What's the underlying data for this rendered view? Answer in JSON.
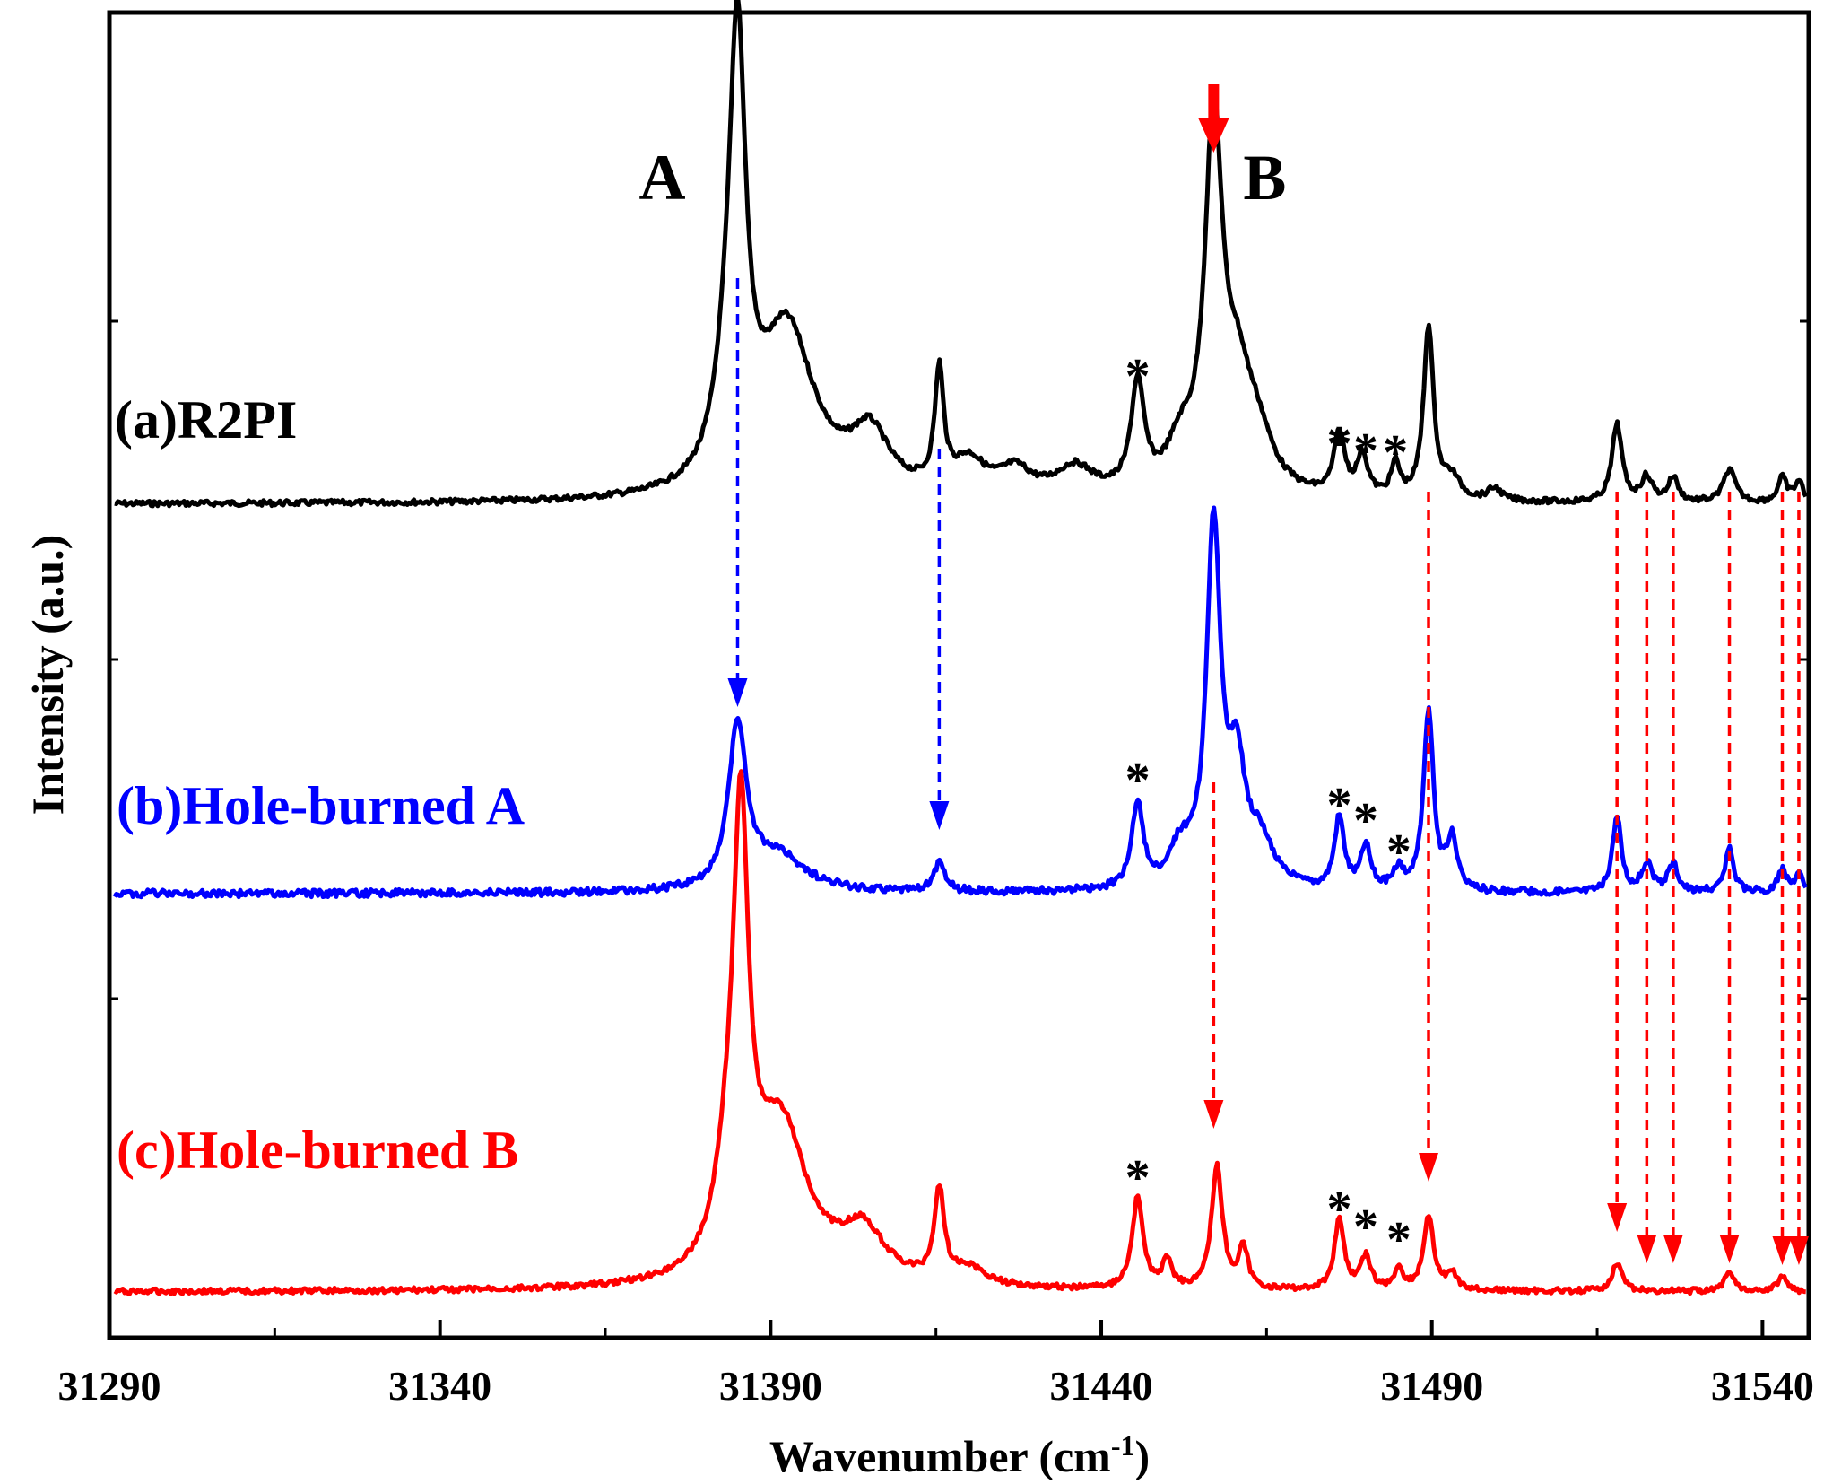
{
  "chart_data": {
    "type": "line",
    "xlabel": "Wavenumber (cm",
    "xlabel_superscript": "-1",
    "xlabel_close": ")",
    "ylabel": "Intensity (a.u.)",
    "xlim": [
      31290,
      31547
    ],
    "xticks": [
      31290,
      31340,
      31390,
      31440,
      31490,
      31540
    ],
    "grid": false,
    "colors": {
      "a": "#000000",
      "b": "#0000ff",
      "c": "#ff0000"
    },
    "series": [
      {
        "name": "(a)R2PI",
        "color": "#000000",
        "baseline": 0.0,
        "peaks": [
          {
            "x": 31385.0,
            "h": 1.0,
            "w": 1.5
          },
          {
            "x": 31383.3,
            "h": 0.16,
            "w": 2.2
          },
          {
            "x": 31392.5,
            "h": 0.4,
            "w": 5.0
          },
          {
            "x": 31405.0,
            "h": 0.14,
            "w": 3.5
          },
          {
            "x": 31415.5,
            "h": 0.28,
            "w": 0.8
          },
          {
            "x": 31420.0,
            "h": 0.08,
            "w": 3.0
          },
          {
            "x": 31427.0,
            "h": 0.06,
            "w": 3.0
          },
          {
            "x": 31436.0,
            "h": 0.07,
            "w": 3.5
          },
          {
            "x": 31445.5,
            "h": 0.26,
            "w": 1.2
          },
          {
            "x": 31452.0,
            "h": 0.1,
            "w": 2.5
          },
          {
            "x": 31457.0,
            "h": 0.88,
            "w": 1.6
          },
          {
            "x": 31460.5,
            "h": 0.22,
            "w": 2.5
          },
          {
            "x": 31463.5,
            "h": 0.12,
            "w": 3.0
          },
          {
            "x": 31476.0,
            "h": 0.15,
            "w": 1.0
          },
          {
            "x": 31479.5,
            "h": 0.1,
            "w": 1.0
          },
          {
            "x": 31484.5,
            "h": 0.08,
            "w": 0.8
          },
          {
            "x": 31489.5,
            "h": 0.42,
            "w": 0.9
          },
          {
            "x": 31493.0,
            "h": 0.05,
            "w": 1.5
          },
          {
            "x": 31499.5,
            "h": 0.03,
            "w": 1.2
          },
          {
            "x": 31518.0,
            "h": 0.19,
            "w": 0.9
          },
          {
            "x": 31522.5,
            "h": 0.06,
            "w": 1.0
          },
          {
            "x": 31526.5,
            "h": 0.06,
            "w": 0.9
          },
          {
            "x": 31535.0,
            "h": 0.08,
            "w": 1.1
          },
          {
            "x": 31543.0,
            "h": 0.06,
            "w": 0.8
          },
          {
            "x": 31545.5,
            "h": 0.05,
            "w": 0.8
          }
        ]
      },
      {
        "name": "(b)Hole-burned A",
        "color": "#0000ff",
        "baseline": 0.0,
        "peaks": [
          {
            "x": 31385.0,
            "h": 0.45,
            "w": 1.6
          },
          {
            "x": 31391.0,
            "h": 0.1,
            "w": 5.0
          },
          {
            "x": 31415.5,
            "h": 0.08,
            "w": 1.0
          },
          {
            "x": 31445.5,
            "h": 0.24,
            "w": 1.0
          },
          {
            "x": 31452.0,
            "h": 0.1,
            "w": 2.0
          },
          {
            "x": 31457.0,
            "h": 1.0,
            "w": 1.3
          },
          {
            "x": 31460.5,
            "h": 0.3,
            "w": 1.5
          },
          {
            "x": 31464.0,
            "h": 0.12,
            "w": 2.5
          },
          {
            "x": 31476.0,
            "h": 0.2,
            "w": 0.9
          },
          {
            "x": 31480.0,
            "h": 0.12,
            "w": 0.9
          },
          {
            "x": 31485.0,
            "h": 0.06,
            "w": 0.8
          },
          {
            "x": 31489.5,
            "h": 0.5,
            "w": 0.9
          },
          {
            "x": 31493.0,
            "h": 0.14,
            "w": 0.9
          },
          {
            "x": 31518.0,
            "h": 0.21,
            "w": 0.8
          },
          {
            "x": 31522.5,
            "h": 0.08,
            "w": 0.9
          },
          {
            "x": 31526.5,
            "h": 0.08,
            "w": 0.9
          },
          {
            "x": 31535.0,
            "h": 0.12,
            "w": 0.8
          },
          {
            "x": 31543.0,
            "h": 0.06,
            "w": 0.8
          },
          {
            "x": 31545.5,
            "h": 0.05,
            "w": 0.8
          }
        ]
      },
      {
        "name": "(c)Hole-burned B",
        "color": "#ff0000",
        "baseline": 0.0,
        "peaks": [
          {
            "x": 31385.5,
            "h": 1.0,
            "w": 1.4
          },
          {
            "x": 31383.5,
            "h": 0.18,
            "w": 2.2
          },
          {
            "x": 31391.5,
            "h": 0.38,
            "w": 5.0
          },
          {
            "x": 31404.0,
            "h": 0.12,
            "w": 4.0
          },
          {
            "x": 31415.5,
            "h": 0.22,
            "w": 0.9
          },
          {
            "x": 31420.0,
            "h": 0.04,
            "w": 3.0
          },
          {
            "x": 31445.5,
            "h": 0.22,
            "w": 1.0
          },
          {
            "x": 31450.0,
            "h": 0.07,
            "w": 0.8
          },
          {
            "x": 31457.5,
            "h": 0.3,
            "w": 1.0
          },
          {
            "x": 31461.5,
            "h": 0.1,
            "w": 0.8
          },
          {
            "x": 31476.0,
            "h": 0.17,
            "w": 0.9
          },
          {
            "x": 31480.0,
            "h": 0.08,
            "w": 0.9
          },
          {
            "x": 31485.0,
            "h": 0.05,
            "w": 0.8
          },
          {
            "x": 31489.5,
            "h": 0.18,
            "w": 0.9
          },
          {
            "x": 31493.0,
            "h": 0.04,
            "w": 1.0
          },
          {
            "x": 31518.0,
            "h": 0.07,
            "w": 0.9
          },
          {
            "x": 31535.0,
            "h": 0.05,
            "w": 0.9
          },
          {
            "x": 31543.0,
            "h": 0.04,
            "w": 0.8
          }
        ]
      }
    ],
    "peak_labels": [
      {
        "text": "A",
        "x": 31385.0
      },
      {
        "text": "B",
        "x": 31457.0
      }
    ],
    "pump_arrow_x": 31457.0,
    "asterisks": {
      "a": [
        31445.5,
        31476.0,
        31480.0,
        31484.5
      ],
      "b": [
        31445.5,
        31476.0,
        31480.0,
        31485.0
      ],
      "c": [
        31445.5,
        31476.0,
        31480.0,
        31485.0
      ]
    },
    "asterisk_symbol": "*",
    "assign_arrows": {
      "a_to_b": [
        31385.0,
        31415.5
      ],
      "b_to_c": [
        31457.0
      ],
      "a_to_c": [
        31489.5,
        31518.0,
        31522.5,
        31526.5,
        31535.0,
        31543.0,
        31545.5
      ]
    }
  }
}
